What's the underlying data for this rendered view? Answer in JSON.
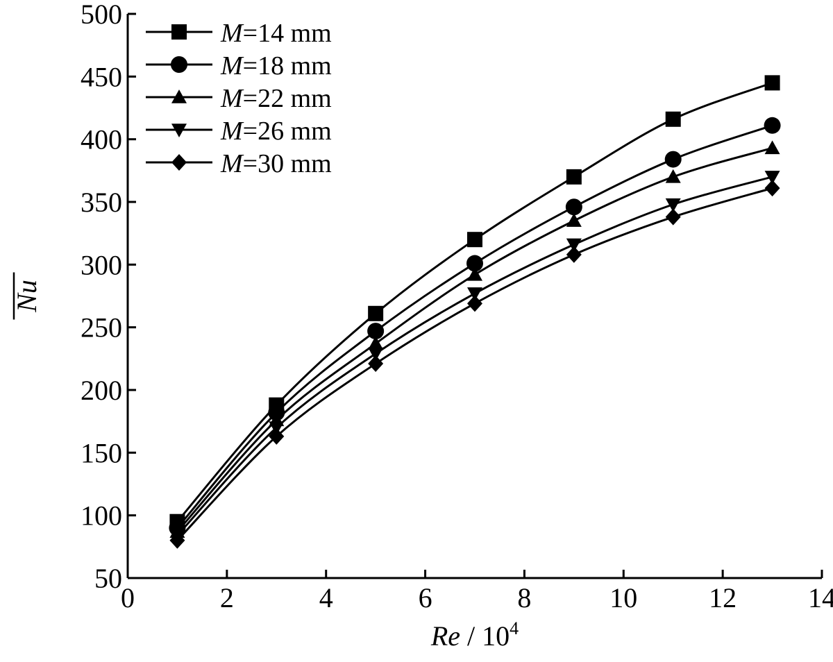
{
  "chart_data": {
    "type": "line",
    "title": "",
    "xlabel": {
      "italic": "Re",
      "plain": " / 10",
      "sup": "4"
    },
    "ylabel": "Nu",
    "xlim": [
      0,
      14
    ],
    "ylim": [
      50,
      500
    ],
    "xticks": [
      0,
      2,
      4,
      6,
      8,
      10,
      12,
      14
    ],
    "yticks": [
      50,
      100,
      150,
      200,
      250,
      300,
      350,
      400,
      450,
      500
    ],
    "grid": false,
    "legend_position": "top-left",
    "line_color": "#000000",
    "series": [
      {
        "name": "M=14 mm",
        "name_italic": "M",
        "name_rest": "=14 mm",
        "marker": "square",
        "x": [
          1,
          3,
          5,
          7,
          9,
          11,
          13
        ],
        "y": [
          95,
          188,
          261,
          320,
          370,
          416,
          445
        ]
      },
      {
        "name": "M=18 mm",
        "name_italic": "M",
        "name_rest": "=18 mm",
        "marker": "circle",
        "x": [
          1,
          3,
          5,
          7,
          9,
          11,
          13
        ],
        "y": [
          90,
          182,
          247,
          301,
          346,
          384,
          411
        ]
      },
      {
        "name": "M=22 mm",
        "name_italic": "M",
        "name_rest": "=22 mm",
        "marker": "triangle-up",
        "x": [
          1,
          3,
          5,
          7,
          9,
          11,
          13
        ],
        "y": [
          87,
          176,
          237,
          292,
          335,
          370,
          393
        ]
      },
      {
        "name": "M=26 mm",
        "name_italic": "M",
        "name_rest": "=26 mm",
        "marker": "triangle-down",
        "x": [
          1,
          3,
          5,
          7,
          9,
          11,
          13
        ],
        "y": [
          84,
          170,
          229,
          277,
          316,
          348,
          370
        ]
      },
      {
        "name": "M=30 mm",
        "name_italic": "M",
        "name_rest": "=30 mm",
        "marker": "diamond",
        "x": [
          1,
          3,
          5,
          7,
          9,
          11,
          13
        ],
        "y": [
          80,
          163,
          221,
          269,
          308,
          338,
          361
        ]
      }
    ]
  }
}
